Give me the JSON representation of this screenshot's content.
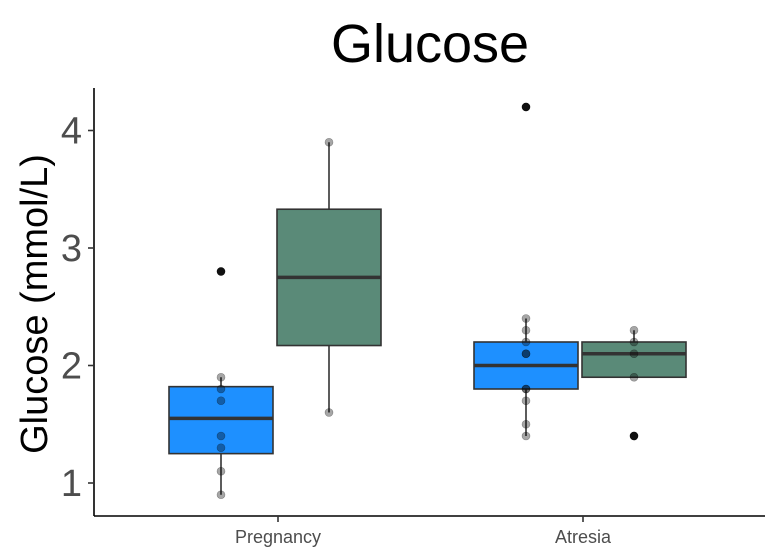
{
  "chart_data": {
    "type": "box",
    "title": "Glucose",
    "ylabel": "Glucose (mmol/L)",
    "xlabel": "",
    "ylim": [
      0.72,
      4.35
    ],
    "yticks": [
      1,
      2,
      3,
      4
    ],
    "ytick_labels": [
      "1",
      "2",
      "3",
      "4"
    ],
    "categories": [
      "Pregnancy",
      "Atresia"
    ],
    "grid": false,
    "legend": "none",
    "series": [
      {
        "color": "#1E90FF",
        "boxes": [
          {
            "category": "Pregnancy",
            "whisker_low": 0.9,
            "q1": 1.25,
            "median": 1.55,
            "q3": 1.82,
            "whisker_high": 1.9,
            "points": [
              0.9,
              1.1,
              1.3,
              1.4,
              1.7,
              1.8,
              1.9,
              2.8
            ],
            "outliers": [
              2.8
            ]
          },
          {
            "category": "Atresia",
            "whisker_low": 1.4,
            "q1": 1.8,
            "median": 2.0,
            "q3": 2.2,
            "whisker_high": 2.4,
            "points": [
              1.4,
              1.5,
              1.7,
              1.8,
              1.8,
              2.1,
              2.1,
              2.2,
              2.3,
              2.4,
              4.2
            ],
            "outliers": [
              4.2
            ]
          }
        ]
      },
      {
        "color": "#5A8A78",
        "boxes": [
          {
            "category": "Pregnancy",
            "whisker_low": 1.6,
            "q1": 2.17,
            "median": 2.75,
            "q3": 3.33,
            "whisker_high": 3.9,
            "points": [
              1.6,
              3.9
            ],
            "outliers": []
          },
          {
            "category": "Atresia",
            "whisker_low": 1.9,
            "q1": 1.9,
            "median": 2.1,
            "q3": 2.2,
            "whisker_high": 2.3,
            "points": [
              1.9,
              2.1,
              2.2,
              2.3,
              1.4
            ],
            "outliers": [
              1.4
            ]
          }
        ]
      }
    ]
  }
}
